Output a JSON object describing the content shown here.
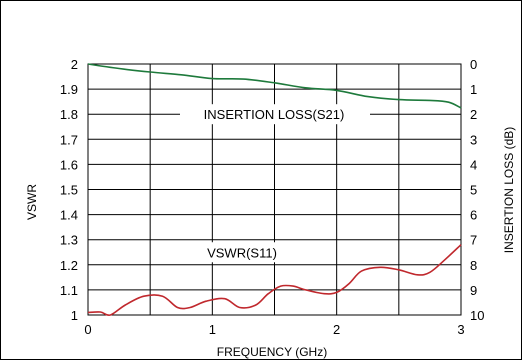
{
  "chart_data": {
    "type": "line",
    "title": "",
    "xlabel": "FREQUENCY  (GHz)",
    "ylabel_left": "VSWR",
    "ylabel_right": "INSERTION LOSS (dB)",
    "xlim": [
      0,
      3
    ],
    "ylim_left": [
      1,
      2
    ],
    "ylim_right": [
      10,
      0
    ],
    "x_ticks": [
      "0",
      "1",
      "2",
      "3"
    ],
    "y_left_ticks": [
      "1",
      "1.1",
      "1.2",
      "1.3",
      "1.4",
      "1.5",
      "1.6",
      "1.7",
      "1.8",
      "1.9",
      "2"
    ],
    "y_right_ticks": [
      "10",
      "9",
      "8",
      "7",
      "6",
      "5",
      "4",
      "3",
      "2",
      "1",
      "0"
    ],
    "grid": true,
    "series": [
      {
        "name": "INSERTION LOSS(S21)",
        "axis": "right",
        "color": "#1e7a3c",
        "x": [
          0,
          0.25,
          0.5,
          0.75,
          1.0,
          1.25,
          1.5,
          1.75,
          2.0,
          2.25,
          2.5,
          2.75,
          2.9,
          3.0
        ],
        "y": [
          0.0,
          0.18,
          0.32,
          0.43,
          0.58,
          0.6,
          0.75,
          0.95,
          1.05,
          1.3,
          1.42,
          1.45,
          1.52,
          1.75
        ]
      },
      {
        "name": "VSWR(S11)",
        "axis": "left",
        "color": "#c0282d",
        "x": [
          0,
          0.1,
          0.18,
          0.3,
          0.45,
          0.6,
          0.72,
          0.82,
          0.95,
          1.1,
          1.22,
          1.35,
          1.45,
          1.55,
          1.65,
          1.75,
          1.9,
          2.0,
          2.1,
          2.2,
          2.35,
          2.5,
          2.65,
          2.75,
          2.87,
          3.0
        ],
        "y": [
          1.01,
          1.012,
          1.0,
          1.04,
          1.075,
          1.075,
          1.03,
          1.03,
          1.055,
          1.065,
          1.03,
          1.04,
          1.085,
          1.115,
          1.115,
          1.1,
          1.085,
          1.09,
          1.125,
          1.175,
          1.19,
          1.18,
          1.16,
          1.17,
          1.22,
          1.28
        ]
      }
    ],
    "annotations": [
      "INSERTION LOSS(S21)",
      "VSWR(S11)"
    ]
  }
}
